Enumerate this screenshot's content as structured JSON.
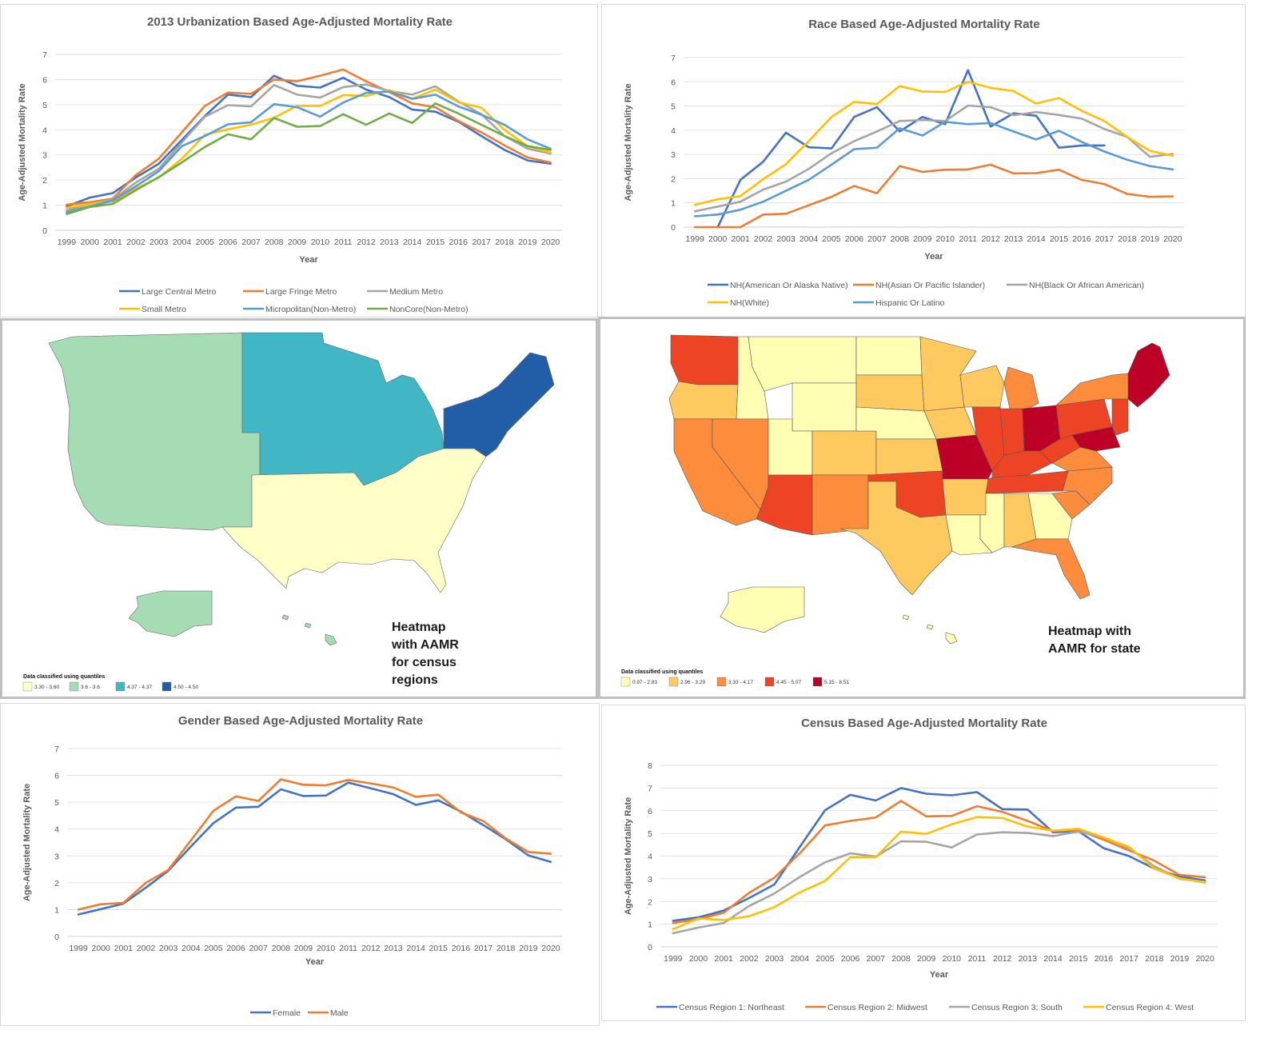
{
  "palette": {
    "blue": "#4472C4",
    "orange": "#ED7D31",
    "gray": "#A5A5A5",
    "yellow": "#FFC000",
    "lightblue": "#5B9BD5",
    "green": "#70AD47",
    "grid": "#d9d9d9"
  },
  "chart_data": [
    {
      "id": "urban",
      "type": "line",
      "title": "2013 Urbanization Based Age-Adjusted Mortality Rate",
      "xlabel": "Year",
      "ylabel": "Age-Adjusted Mortality Rate",
      "ylim": [
        0,
        7
      ],
      "yticks": [
        0,
        1,
        2,
        3,
        4,
        5,
        6,
        7
      ],
      "grid": true,
      "legend_position": "bottom",
      "x": [
        "1999",
        "2000",
        "2001",
        "2002",
        "2003",
        "2004",
        "2005",
        "2006",
        "2007",
        "2008",
        "2009",
        "2010",
        "2011",
        "2012",
        "2013",
        "2014",
        "2015",
        "2016",
        "2017",
        "2018",
        "2019",
        "2020"
      ],
      "series": [
        {
          "name": "Large Central Metro",
          "color": "#4472C4",
          "values": [
            0.95,
            1.3,
            1.48,
            2.1,
            2.65,
            3.6,
            4.55,
            5.4,
            5.3,
            6.15,
            5.75,
            5.68,
            6.07,
            5.6,
            5.3,
            4.8,
            4.72,
            4.32,
            3.75,
            3.2,
            2.78,
            2.65
          ]
        },
        {
          "name": "Large Fringe Metro",
          "color": "#ED7D31",
          "values": [
            1.02,
            1.12,
            1.26,
            2.2,
            2.85,
            3.9,
            4.95,
            5.48,
            5.43,
            6.0,
            5.93,
            6.15,
            6.4,
            5.93,
            5.5,
            5.05,
            4.9,
            4.35,
            3.9,
            3.38,
            2.9,
            2.7
          ]
        },
        {
          "name": "Medium Metro",
          "color": "#A5A5A5",
          "values": [
            0.8,
            1.05,
            1.22,
            1.9,
            2.45,
            3.5,
            4.52,
            4.98,
            4.93,
            5.78,
            5.4,
            5.28,
            5.7,
            5.8,
            5.55,
            5.4,
            5.73,
            5.13,
            4.62,
            3.75,
            3.25,
            3.05
          ]
        },
        {
          "name": "Small Metro",
          "color": "#FFC000",
          "values": [
            0.9,
            1.05,
            1.15,
            1.65,
            2.1,
            2.85,
            3.8,
            4.02,
            4.2,
            4.48,
            4.95,
            4.95,
            5.38,
            5.35,
            5.58,
            5.23,
            5.6,
            5.1,
            4.88,
            4.0,
            3.35,
            3.1
          ]
        },
        {
          "name": "Micropolitan(Non-Metro)",
          "color": "#5B9BD5",
          "values": [
            0.72,
            0.95,
            1.18,
            1.75,
            2.35,
            3.35,
            3.75,
            4.22,
            4.3,
            5.02,
            4.9,
            4.52,
            5.08,
            5.47,
            5.52,
            5.23,
            5.4,
            4.93,
            4.6,
            4.2,
            3.62,
            3.25
          ]
        },
        {
          "name": "NonCore(Non-Metro)",
          "color": "#70AD47",
          "values": [
            0.65,
            0.93,
            1.05,
            1.6,
            2.12,
            2.7,
            3.32,
            3.82,
            3.62,
            4.47,
            4.12,
            4.15,
            4.62,
            4.2,
            4.65,
            4.27,
            5.05,
            4.65,
            4.2,
            3.75,
            3.35,
            3.2
          ]
        }
      ]
    },
    {
      "id": "race",
      "type": "line",
      "title": "Race Based Age-Adjusted Mortality Rate",
      "xlabel": "Year",
      "ylabel": "Age-Adjusted Mortality Rate",
      "ylim": [
        0,
        7
      ],
      "yticks": [
        0,
        1,
        2,
        3,
        4,
        5,
        6,
        7
      ],
      "grid": true,
      "legend_position": "bottom",
      "x": [
        "1999",
        "2000",
        "2001",
        "2002",
        "2003",
        "2004",
        "2005",
        "2006",
        "2007",
        "2008",
        "2009",
        "2010",
        "2011",
        "2012",
        "2013",
        "2014",
        "2015",
        "2016",
        "2017",
        "2018",
        "2019",
        "2020"
      ],
      "series": [
        {
          "name": "NH(American Or Alaska Native)",
          "color": "#4472C4",
          "values": [
            null,
            0,
            1.95,
            2.7,
            3.9,
            3.3,
            3.25,
            4.55,
            4.95,
            3.95,
            4.55,
            4.25,
            6.48,
            4.15,
            4.7,
            4.6,
            3.28,
            3.37,
            3.37,
            null,
            null,
            null
          ]
        },
        {
          "name": "NH(Asian Or Pacific Islander)",
          "color": "#ED7D31",
          "values": [
            0,
            0,
            0,
            0.52,
            0.55,
            0.9,
            1.25,
            1.7,
            1.4,
            2.52,
            2.28,
            2.37,
            2.38,
            2.58,
            2.22,
            2.23,
            2.37,
            1.95,
            1.78,
            1.37,
            1.25,
            1.27
          ]
        },
        {
          "name": "NH(Black Or African American)",
          "color": "#A5A5A5",
          "values": [
            0.65,
            0.85,
            1.05,
            1.55,
            1.88,
            2.4,
            3.05,
            3.55,
            3.95,
            4.38,
            4.42,
            4.38,
            5.02,
            4.95,
            4.62,
            4.75,
            4.63,
            4.48,
            4.05,
            3.72,
            2.9,
            3.02
          ]
        },
        {
          "name": "NH(White)",
          "color": "#FFC000",
          "values": [
            0.92,
            1.15,
            1.28,
            1.98,
            2.6,
            3.55,
            4.55,
            5.17,
            5.08,
            5.82,
            5.6,
            5.58,
            6.0,
            5.75,
            5.62,
            5.1,
            5.33,
            4.8,
            4.38,
            3.72,
            3.15,
            2.95
          ]
        },
        {
          "name": "Hispanic Or Latino",
          "color": "#5B9BD5",
          "values": [
            0.45,
            0.52,
            0.72,
            1.05,
            1.5,
            1.95,
            2.58,
            3.22,
            3.28,
            4.08,
            3.78,
            4.35,
            4.25,
            4.3,
            3.95,
            3.62,
            3.98,
            3.52,
            3.12,
            2.78,
            2.52,
            2.38
          ]
        }
      ]
    },
    {
      "id": "gender",
      "type": "line",
      "title": "Gender Based Age-Adjusted Mortality Rate",
      "xlabel": "Year",
      "ylabel": "Age-Adjusted Mortality Rate",
      "ylim": [
        0,
        7
      ],
      "yticks": [
        0,
        1,
        2,
        3,
        4,
        5,
        6,
        7
      ],
      "grid": true,
      "legend_position": "bottom",
      "x": [
        "1999",
        "2000",
        "2001",
        "2002",
        "2003",
        "2004",
        "2005",
        "2006",
        "2007",
        "2008",
        "2009",
        "2010",
        "2011",
        "2012",
        "2013",
        "2014",
        "2015",
        "2016",
        "2017",
        "2018",
        "2019",
        "2020"
      ],
      "series": [
        {
          "name": "Female",
          "color": "#4472C4",
          "values": [
            0.82,
            1.02,
            1.22,
            1.82,
            2.45,
            3.35,
            4.22,
            4.8,
            4.83,
            5.48,
            5.23,
            5.25,
            5.73,
            5.52,
            5.3,
            4.9,
            5.07,
            4.65,
            4.15,
            3.62,
            3.02,
            2.78
          ]
        },
        {
          "name": "Male",
          "color": "#ED7D31",
          "values": [
            1.0,
            1.2,
            1.25,
            2.0,
            2.48,
            3.58,
            4.68,
            5.22,
            5.05,
            5.85,
            5.65,
            5.63,
            5.83,
            5.7,
            5.55,
            5.2,
            5.28,
            4.62,
            4.3,
            3.65,
            3.15,
            3.08
          ]
        }
      ]
    },
    {
      "id": "census",
      "type": "line",
      "title": "Census Based Age-Adjusted Mortality Rate",
      "xlabel": "Year",
      "ylabel": "Age-Adjusted Mortality Rate",
      "ylim": [
        0,
        8
      ],
      "yticks": [
        0,
        1,
        2,
        3,
        4,
        5,
        6,
        7,
        8
      ],
      "grid": true,
      "legend_position": "bottom",
      "x": [
        "1999",
        "2000",
        "2001",
        "2002",
        "2003",
        "2004",
        "2005",
        "2006",
        "2007",
        "2008",
        "2009",
        "2010",
        "2011",
        "2012",
        "2013",
        "2014",
        "2015",
        "2016",
        "2017",
        "2018",
        "2019",
        "2020"
      ],
      "series": [
        {
          "name": "Census Region 1: Northeast",
          "color": "#4472C4",
          "values": [
            1.15,
            1.3,
            1.6,
            2.15,
            2.75,
            4.4,
            6.02,
            6.7,
            6.45,
            7.0,
            6.75,
            6.68,
            6.82,
            6.07,
            6.05,
            5.05,
            5.1,
            4.35,
            4.0,
            3.45,
            3.1,
            2.93
          ]
        },
        {
          "name": "Census Region 2: Midwest",
          "color": "#ED7D31",
          "values": [
            1.05,
            1.22,
            1.5,
            2.38,
            3.05,
            4.12,
            5.35,
            5.55,
            5.7,
            6.43,
            5.75,
            5.77,
            6.2,
            5.95,
            5.55,
            5.1,
            5.15,
            4.72,
            4.25,
            3.8,
            3.17,
            3.07
          ]
        },
        {
          "name": "Census Region 3: South",
          "color": "#A5A5A5",
          "values": [
            0.6,
            0.85,
            1.05,
            1.8,
            2.35,
            3.08,
            3.72,
            4.12,
            3.98,
            4.65,
            4.63,
            4.38,
            4.95,
            5.05,
            5.02,
            4.88,
            5.08,
            4.82,
            4.35,
            3.55,
            3.0,
            2.87
          ]
        },
        {
          "name": "Census Region 4: West",
          "color": "#FFC000",
          "values": [
            0.78,
            1.25,
            1.18,
            1.35,
            1.75,
            2.4,
            2.9,
            3.95,
            3.95,
            5.08,
            4.98,
            5.4,
            5.72,
            5.68,
            5.3,
            5.12,
            5.2,
            4.82,
            4.4,
            3.45,
            3.02,
            2.83
          ]
        }
      ]
    }
  ],
  "maps": {
    "region": {
      "caption": [
        "Heatmap",
        "with AAMR",
        "for census",
        "regions"
      ],
      "legend_title": "Data classified using quantiles",
      "legend": [
        {
          "label": "3.30 - 3.60",
          "color": "#FFFFC8"
        },
        {
          "label": "3.6 - 3.6",
          "color": "#A5DCB4"
        },
        {
          "label": "4.37 - 4.37",
          "color": "#41B6C4"
        },
        {
          "label": "4.50 - 4.50",
          "color": "#225EA8"
        }
      ]
    },
    "state": {
      "caption": [
        "Heatmap with",
        "AAMR for state"
      ],
      "legend_title": "Data classified using quantiles",
      "legend": [
        {
          "label": "0.97 - 2.83",
          "color": "#FFFFB4"
        },
        {
          "label": "2.96 - 3.29",
          "color": "#FEC95E"
        },
        {
          "label": "3.33 - 4.17",
          "color": "#FD8C3C"
        },
        {
          "label": "4.45 - 5.07",
          "color": "#EC4424"
        },
        {
          "label": "5.15 - 8.51",
          "color": "#BD0026"
        }
      ]
    }
  }
}
